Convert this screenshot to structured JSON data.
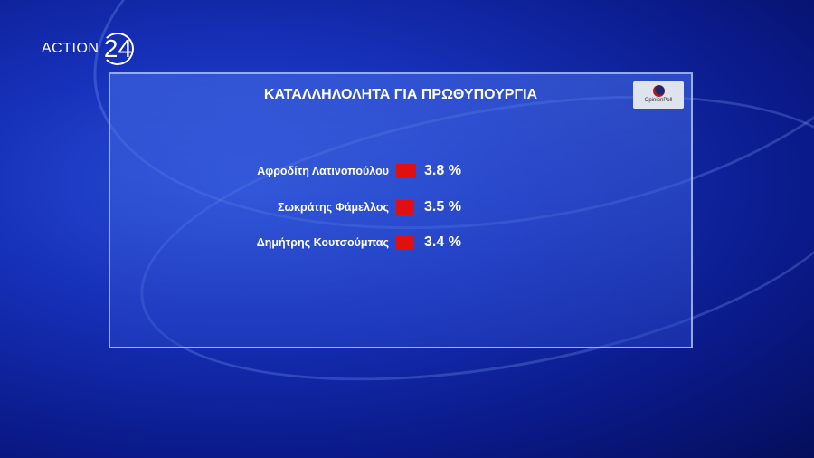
{
  "logo": {
    "brand": "ACTION",
    "number": "24"
  },
  "pollster": "OpinionPoll",
  "chart_data": {
    "type": "bar",
    "title": "ΚΑΤΑΛΛΗΛΟΛΗΤΑ ΓΙΑ ΠΡΩΘΥΠΟΥΡΓΙΑ",
    "orientation": "horizontal",
    "categories": [
      "Αφροδίτη Λατινοπούλου",
      "Σωκράτης Φάμελλος",
      "Δημήτρης Κουτσούμπας"
    ],
    "values": [
      3.8,
      3.5,
      3.4
    ],
    "value_labels": [
      "3.8 %",
      "3.5 %",
      "3.4 %"
    ],
    "bar_color": "#e01010"
  }
}
